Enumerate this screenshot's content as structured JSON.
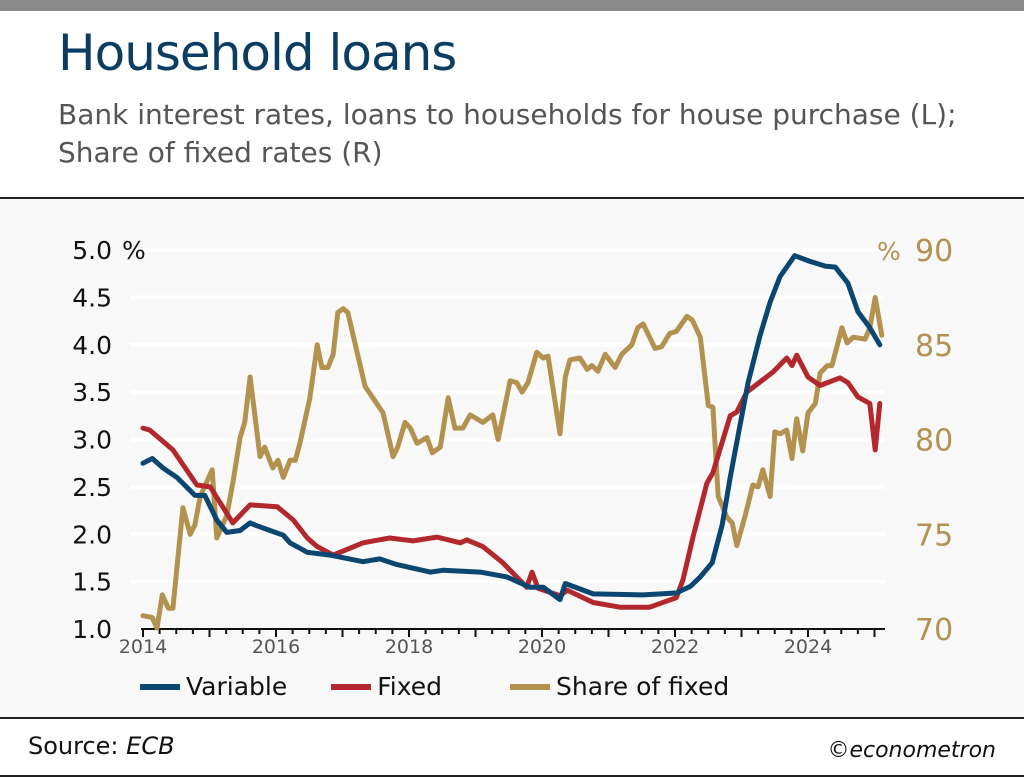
{
  "header": {
    "title": "Household loans",
    "subtitle": "Bank interest rates, loans to households for house purchase (L); Share of fixed rates (R)"
  },
  "footer": {
    "source_label": "Source: ",
    "source": "ECB",
    "credit": "©econometron"
  },
  "colors": {
    "variable": "#0b4670",
    "fixed": "#b3282d",
    "share": "#b39250",
    "left_axis": "#111111",
    "right_axis": "#b39250"
  },
  "chart_data": {
    "type": "line",
    "title": "Household loans",
    "xlabel": "",
    "ylabel_left": "%",
    "ylabel_right": "%",
    "xlim": [
      2014,
      2025.2
    ],
    "x_ticks": [
      "2014",
      "2016",
      "2018",
      "2020",
      "2022",
      "2024"
    ],
    "x_tick_values": [
      2014,
      2016,
      2018,
      2020,
      2022,
      2024
    ],
    "ylim_left": [
      1.0,
      5.0
    ],
    "y_ticks_left": [
      "1.0",
      "1.5",
      "2.0",
      "2.5",
      "3.0",
      "3.5",
      "4.0",
      "4.5",
      "5.0"
    ],
    "ylim_right": [
      70,
      90
    ],
    "y_ticks_right": [
      "70",
      "75",
      "80",
      "85",
      "90"
    ],
    "grid": true,
    "legend_position": "bottom",
    "series": [
      {
        "name": "Variable",
        "axis": "left",
        "color_key": "variable",
        "points": [
          [
            2014.0,
            2.75
          ],
          [
            2014.14,
            2.8
          ],
          [
            2014.3,
            2.7
          ],
          [
            2014.51,
            2.6
          ],
          [
            2014.78,
            2.41
          ],
          [
            2014.93,
            2.41
          ],
          [
            2015.11,
            2.15
          ],
          [
            2015.26,
            2.02
          ],
          [
            2015.46,
            2.04
          ],
          [
            2015.61,
            2.12
          ],
          [
            2015.71,
            2.09
          ],
          [
            2015.91,
            2.04
          ],
          [
            2016.11,
            1.99
          ],
          [
            2016.21,
            1.91
          ],
          [
            2016.47,
            1.81
          ],
          [
            2016.81,
            1.78
          ],
          [
            2017.31,
            1.71
          ],
          [
            2017.56,
            1.74
          ],
          [
            2017.82,
            1.68
          ],
          [
            2018.32,
            1.6
          ],
          [
            2018.51,
            1.62
          ],
          [
            2019.07,
            1.6
          ],
          [
            2019.47,
            1.55
          ],
          [
            2019.82,
            1.44
          ],
          [
            2020.02,
            1.44
          ],
          [
            2020.27,
            1.31
          ],
          [
            2020.35,
            1.48
          ],
          [
            2020.77,
            1.37
          ],
          [
            2021.52,
            1.36
          ],
          [
            2022.02,
            1.38
          ],
          [
            2022.23,
            1.45
          ],
          [
            2022.38,
            1.55
          ],
          [
            2022.56,
            1.7
          ],
          [
            2022.71,
            2.1
          ],
          [
            2022.83,
            2.6
          ],
          [
            2022.95,
            3.05
          ],
          [
            2023.1,
            3.6
          ],
          [
            2023.28,
            4.1
          ],
          [
            2023.43,
            4.45
          ],
          [
            2023.58,
            4.72
          ],
          [
            2023.8,
            4.94
          ],
          [
            2024.03,
            4.88
          ],
          [
            2024.26,
            4.83
          ],
          [
            2024.41,
            4.82
          ],
          [
            2024.6,
            4.65
          ],
          [
            2024.75,
            4.35
          ],
          [
            2024.93,
            4.18
          ],
          [
            2025.08,
            4.0
          ]
        ]
      },
      {
        "name": "Fixed",
        "axis": "left",
        "color_key": "fixed",
        "points": [
          [
            2014.0,
            3.12
          ],
          [
            2014.1,
            3.1
          ],
          [
            2014.45,
            2.89
          ],
          [
            2014.81,
            2.52
          ],
          [
            2015.01,
            2.5
          ],
          [
            2015.35,
            2.12
          ],
          [
            2015.61,
            2.31
          ],
          [
            2016.02,
            2.29
          ],
          [
            2016.26,
            2.15
          ],
          [
            2016.47,
            1.96
          ],
          [
            2016.62,
            1.87
          ],
          [
            2016.86,
            1.78
          ],
          [
            2017.31,
            1.91
          ],
          [
            2017.71,
            1.96
          ],
          [
            2018.06,
            1.93
          ],
          [
            2018.42,
            1.97
          ],
          [
            2018.77,
            1.91
          ],
          [
            2018.87,
            1.94
          ],
          [
            2019.11,
            1.87
          ],
          [
            2019.41,
            1.7
          ],
          [
            2019.77,
            1.44
          ],
          [
            2019.85,
            1.6
          ],
          [
            2019.94,
            1.43
          ],
          [
            2020.27,
            1.35
          ],
          [
            2020.38,
            1.41
          ],
          [
            2020.77,
            1.28
          ],
          [
            2021.17,
            1.23
          ],
          [
            2021.62,
            1.23
          ],
          [
            2022.02,
            1.33
          ],
          [
            2022.12,
            1.52
          ],
          [
            2022.27,
            1.97
          ],
          [
            2022.48,
            2.54
          ],
          [
            2022.57,
            2.65
          ],
          [
            2022.83,
            3.25
          ],
          [
            2022.93,
            3.29
          ],
          [
            2023.08,
            3.5
          ],
          [
            2023.47,
            3.71
          ],
          [
            2023.68,
            3.86
          ],
          [
            2023.76,
            3.78
          ],
          [
            2023.83,
            3.89
          ],
          [
            2024.0,
            3.66
          ],
          [
            2024.18,
            3.57
          ],
          [
            2024.48,
            3.65
          ],
          [
            2024.6,
            3.6
          ],
          [
            2024.75,
            3.45
          ],
          [
            2024.93,
            3.38
          ],
          [
            2025.01,
            2.89
          ],
          [
            2025.08,
            3.38
          ]
        ]
      },
      {
        "name": "Share of fixed",
        "axis": "right",
        "color_key": "share",
        "points": [
          [
            2014.0,
            70.7
          ],
          [
            2014.14,
            70.6
          ],
          [
            2014.21,
            70.05
          ],
          [
            2014.29,
            71.8
          ],
          [
            2014.38,
            71.1
          ],
          [
            2014.45,
            71.1
          ],
          [
            2014.6,
            76.4
          ],
          [
            2014.71,
            75.0
          ],
          [
            2014.78,
            75.5
          ],
          [
            2014.86,
            77.0
          ],
          [
            2015.04,
            78.4
          ],
          [
            2015.11,
            74.8
          ],
          [
            2015.26,
            76.0
          ],
          [
            2015.35,
            77.7
          ],
          [
            2015.46,
            80.1
          ],
          [
            2015.53,
            80.9
          ],
          [
            2015.61,
            83.3
          ],
          [
            2015.76,
            79.1
          ],
          [
            2015.83,
            79.6
          ],
          [
            2015.95,
            78.5
          ],
          [
            2016.03,
            78.9
          ],
          [
            2016.11,
            78.0
          ],
          [
            2016.21,
            78.9
          ],
          [
            2016.29,
            78.9
          ],
          [
            2016.36,
            79.8
          ],
          [
            2016.51,
            82.2
          ],
          [
            2016.62,
            85.0
          ],
          [
            2016.69,
            83.8
          ],
          [
            2016.78,
            83.8
          ],
          [
            2016.86,
            84.5
          ],
          [
            2016.93,
            86.7
          ],
          [
            2017.01,
            86.9
          ],
          [
            2017.08,
            86.7
          ],
          [
            2017.34,
            82.8
          ],
          [
            2017.61,
            81.4
          ],
          [
            2017.76,
            79.1
          ],
          [
            2017.83,
            79.6
          ],
          [
            2017.94,
            80.9
          ],
          [
            2018.02,
            80.6
          ],
          [
            2018.12,
            79.8
          ],
          [
            2018.27,
            80.1
          ],
          [
            2018.35,
            79.3
          ],
          [
            2018.47,
            79.6
          ],
          [
            2018.59,
            82.2
          ],
          [
            2018.69,
            80.6
          ],
          [
            2018.81,
            80.6
          ],
          [
            2018.92,
            81.3
          ],
          [
            2019.11,
            80.9
          ],
          [
            2019.26,
            81.3
          ],
          [
            2019.34,
            80.0
          ],
          [
            2019.52,
            83.1
          ],
          [
            2019.62,
            83.0
          ],
          [
            2019.7,
            82.5
          ],
          [
            2019.79,
            83.0
          ],
          [
            2019.92,
            84.6
          ],
          [
            2020.02,
            84.3
          ],
          [
            2020.09,
            84.4
          ],
          [
            2020.27,
            80.3
          ],
          [
            2020.35,
            83.3
          ],
          [
            2020.42,
            84.2
          ],
          [
            2020.57,
            84.3
          ],
          [
            2020.68,
            83.7
          ],
          [
            2020.75,
            83.9
          ],
          [
            2020.84,
            83.6
          ],
          [
            2020.95,
            84.5
          ],
          [
            2021.1,
            83.8
          ],
          [
            2021.2,
            84.5
          ],
          [
            2021.35,
            85.0
          ],
          [
            2021.44,
            85.9
          ],
          [
            2021.52,
            86.1
          ],
          [
            2021.7,
            84.8
          ],
          [
            2021.8,
            84.9
          ],
          [
            2021.92,
            85.6
          ],
          [
            2022.02,
            85.7
          ],
          [
            2022.18,
            86.5
          ],
          [
            2022.26,
            86.3
          ],
          [
            2022.38,
            85.4
          ],
          [
            2022.5,
            81.8
          ],
          [
            2022.57,
            81.7
          ],
          [
            2022.65,
            77.0
          ],
          [
            2022.78,
            75.9
          ],
          [
            2022.86,
            75.6
          ],
          [
            2022.93,
            74.4
          ],
          [
            2023.05,
            75.9
          ],
          [
            2023.17,
            77.6
          ],
          [
            2023.25,
            77.5
          ],
          [
            2023.32,
            78.4
          ],
          [
            2023.43,
            77.0
          ],
          [
            2023.5,
            80.4
          ],
          [
            2023.58,
            80.3
          ],
          [
            2023.68,
            80.5
          ],
          [
            2023.76,
            79.0
          ],
          [
            2023.83,
            81.1
          ],
          [
            2023.92,
            79.4
          ],
          [
            2024.0,
            81.4
          ],
          [
            2024.11,
            81.9
          ],
          [
            2024.18,
            83.5
          ],
          [
            2024.29,
            83.9
          ],
          [
            2024.36,
            83.9
          ],
          [
            2024.51,
            85.9
          ],
          [
            2024.59,
            85.1
          ],
          [
            2024.68,
            85.4
          ],
          [
            2024.86,
            85.3
          ],
          [
            2024.93,
            85.9
          ],
          [
            2025.01,
            87.5
          ],
          [
            2025.11,
            85.5
          ]
        ]
      }
    ]
  }
}
